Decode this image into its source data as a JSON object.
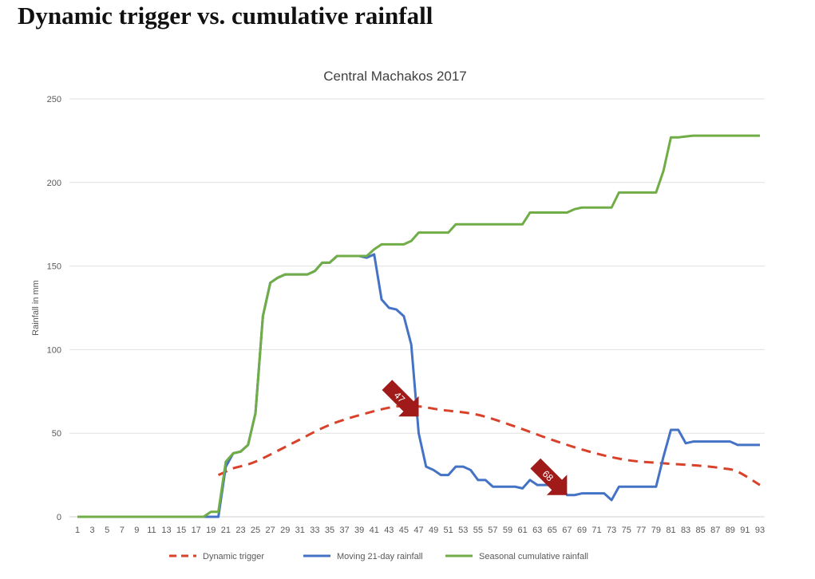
{
  "page_title": "Dynamic trigger vs. cumulative rainfall",
  "chart_data": {
    "type": "line",
    "title": "Central Machakos 2017",
    "xlabel": "",
    "ylabel": "Rainfall in mm",
    "ylim": [
      0,
      250
    ],
    "yticks": [
      0,
      50,
      100,
      150,
      200,
      250
    ],
    "xlim": [
      1,
      93
    ],
    "xtick_step": 2,
    "grid": true,
    "legend_position": "bottom",
    "series": [
      {
        "name": "Dynamic trigger",
        "color": "#d9412b",
        "style": "dashed",
        "points": [
          [
            20,
            25
          ],
          [
            21,
            27
          ],
          [
            22,
            29
          ],
          [
            25,
            33
          ],
          [
            30,
            44
          ],
          [
            35,
            55
          ],
          [
            40,
            62
          ],
          [
            44,
            66
          ],
          [
            47,
            66
          ],
          [
            50,
            64
          ],
          [
            55,
            61
          ],
          [
            60,
            54
          ],
          [
            65,
            46
          ],
          [
            70,
            39
          ],
          [
            75,
            34
          ],
          [
            80,
            32
          ],
          [
            85,
            30.5
          ],
          [
            88,
            29
          ],
          [
            90,
            27
          ],
          [
            93,
            19
          ]
        ]
      },
      {
        "name": "Moving 21-day rainfall",
        "color": "#4472c4",
        "style": "solid",
        "values": [
          0,
          0,
          0,
          0,
          0,
          0,
          0,
          0,
          0,
          0,
          0,
          0,
          0,
          0,
          0,
          0,
          0,
          0,
          0,
          0,
          30,
          38,
          39,
          43,
          62,
          120,
          140,
          143,
          145,
          145,
          145,
          145,
          147,
          152,
          152,
          156,
          156,
          156,
          156,
          155,
          157,
          130,
          125,
          124,
          120,
          103,
          50,
          30,
          28,
          25,
          25,
          30,
          30,
          28,
          22,
          22,
          18,
          18,
          18,
          18,
          17,
          22,
          19,
          19,
          19,
          19,
          13,
          13,
          14,
          14,
          14,
          14,
          10,
          18,
          18,
          18,
          18,
          18,
          18,
          36,
          52,
          52,
          44,
          45,
          45,
          45,
          45,
          45,
          45,
          43,
          43,
          43,
          43
        ]
      },
      {
        "name": "Seasonal cumulative rainfall",
        "color": "#70ad47",
        "style": "solid",
        "values": [
          0,
          0,
          0,
          0,
          0,
          0,
          0,
          0,
          0,
          0,
          0,
          0,
          0,
          0,
          0,
          0,
          0,
          0,
          3,
          3,
          33,
          38,
          39,
          43,
          62,
          120,
          140,
          143,
          145,
          145,
          145,
          145,
          147,
          152,
          152,
          156,
          156,
          156,
          156,
          156,
          160,
          163,
          163,
          163,
          163,
          165,
          170,
          170,
          170,
          170,
          170,
          175,
          175,
          175,
          175,
          175,
          175,
          175,
          175,
          175,
          175,
          182,
          182,
          182,
          182,
          182,
          182,
          184,
          185,
          185,
          185,
          185,
          185,
          194,
          194,
          194,
          194,
          194,
          194,
          207,
          227,
          227,
          227.5,
          228,
          228,
          228,
          228,
          228,
          228,
          228,
          228,
          228,
          228
        ]
      }
    ],
    "annotations": [
      {
        "text": "47",
        "x": 47,
        "y": 60,
        "color": "#a11a1a"
      },
      {
        "text": "68",
        "x": 67,
        "y": 13,
        "color": "#a11a1a"
      }
    ]
  }
}
